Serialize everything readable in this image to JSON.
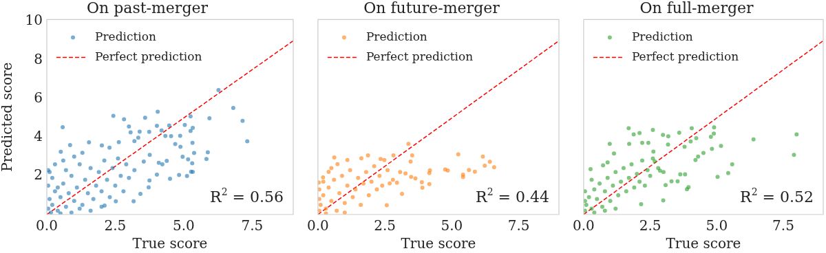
{
  "chart_data": [
    {
      "type": "scatter",
      "title": "On past-merger",
      "xlabel": "True score",
      "ylabel": "Predicted score",
      "xlim": [
        0,
        9
      ],
      "xticks": [
        {
          "value": 0,
          "label": "0.0"
        },
        {
          "value": 2.5,
          "label": "2.5"
        },
        {
          "value": 5,
          "label": "5.0"
        },
        {
          "value": 7.5,
          "label": "7.5"
        }
      ],
      "ylim": [
        0,
        10.1
      ],
      "yticks": [
        2,
        4,
        6,
        8,
        10
      ],
      "legend": "top left",
      "annotations": [
        "R$^{2}$ = 0.56"
      ],
      "series": [
        {
          "name": "Prediction",
          "color": "#1f77b4",
          "marker": "circle",
          "x": [
            6.27,
            6.81,
            7.15,
            7.32,
            5.94,
            5.88,
            5.83,
            4.05,
            3.59,
            2.43,
            2.82,
            0.58,
            3.0,
            3.06,
            3.39,
            3.74,
            4.02,
            4.47,
            5.04,
            5.25,
            5.33,
            5.25,
            4.19,
            4.33,
            4.54,
            4.87,
            5.32,
            4.69,
            4.88,
            5.38,
            4.96,
            5.16,
            5.31,
            5.27,
            5.33,
            4.83,
            5.12,
            4.5,
            4.02,
            3.75,
            3.72,
            3.42,
            3.17,
            2.52,
            2.11,
            0.85,
            0.51,
            1.54,
            2.01,
            2.63,
            2.29,
            3.34,
            3.2,
            4.38,
            4.22,
            4.09,
            3.76,
            3.54,
            0.05,
            0.1,
            0.05,
            0.05,
            0.1,
            0.2,
            0.3,
            0.4,
            0.5,
            0.6,
            0.7,
            0.8,
            0.9,
            1.0,
            1.1,
            1.2,
            1.3,
            1.4,
            1.5,
            1.6,
            1.7,
            1.8,
            1.9,
            2.0,
            2.1,
            2.2,
            2.3,
            2.4,
            2.5,
            2.6,
            2.7,
            2.8,
            2.9,
            3.0,
            3.2,
            0.3,
            0.6,
            1.0,
            1.3,
            0.15,
            0.5,
            0.9,
            1.2,
            1.6,
            2.0,
            0.2,
            0.4,
            0.7
          ],
          "values": [
            6.45,
            5.52,
            4.85,
            3.79,
            4.99,
            3.22,
            2.88,
            5.32,
            5.01,
            5.11,
            4.93,
            4.52,
            4.56,
            4.26,
            4.29,
            4.28,
            4.59,
            4.61,
            4.64,
            5.08,
            4.49,
            4.33,
            4.35,
            4.07,
            4.06,
            4.08,
            3.71,
            3.65,
            3.51,
            3.19,
            2.99,
            2.86,
            2.65,
            2.22,
            2.21,
            2.05,
            1.99,
            1.85,
            2.07,
            1.76,
            1.41,
            1.07,
            0.69,
            0.69,
            0.46,
            3.6,
            3.25,
            3.74,
            3.58,
            3.75,
            3.46,
            3.98,
            3.8,
            2.78,
            2.6,
            2.68,
            3.09,
            2.74,
            0.3,
            0.8,
            1.5,
            2.3,
            2.2,
            0.5,
            1.2,
            0.2,
            0.9,
            1.6,
            0.4,
            1.1,
            2.0,
            0.7,
            1.4,
            2.6,
            0.5,
            1.8,
            1.1,
            2.4,
            0.8,
            1.5,
            2.2,
            1.2,
            2.8,
            1.8,
            0.9,
            2.4,
            1.5,
            2.9,
            2.0,
            1.2,
            2.6,
            1.9,
            2.3,
            2.6,
            2.8,
            3.0,
            3.2,
            0.1,
            0.05,
            0.1,
            0.3,
            0.2,
            0.4,
            1.9,
            1.4,
            2.3
          ]
        },
        {
          "name": "Perfect prediction",
          "type": "line",
          "color": "#ff0000",
          "marker": "none",
          "line_style": "dashed",
          "x": [
            0,
            9
          ],
          "values": [
            0,
            9
          ]
        }
      ]
    },
    {
      "type": "scatter",
      "title": "On future-merger",
      "xlabel": "True score",
      "xlim": [
        0,
        9
      ],
      "xticks": [
        {
          "value": 0,
          "label": "0.0"
        },
        {
          "value": 2.5,
          "label": "2.5"
        },
        {
          "value": 5,
          "label": "5.0"
        },
        {
          "value": 7.5,
          "label": "7.5"
        }
      ],
      "ylim": [
        0,
        10.1
      ],
      "yticks": [
        2,
        4,
        6,
        8,
        10
      ],
      "tick_labels": "x",
      "legend": "top left",
      "annotations": [
        "R$^{2}$ = 0.44"
      ],
      "series": [
        {
          "name": "Prediction",
          "color": "#ff7f0e",
          "marker": "circle",
          "x": [
            3.38,
            5.24,
            6.16,
            6.42,
            6.23,
            6.58,
            5.64,
            5.86,
            5.42,
            5.42,
            4.75,
            4.85,
            4.18,
            4.16,
            3.52,
            3.46,
            2.82,
            1.87,
            1.62,
            0.61,
            1.1,
            0.73,
            2.34,
            2.48,
            3.07,
            3.27,
            3.64,
            3.48,
            3.88,
            4.16,
            3.9,
            2.68,
            2.95,
            3.14,
            2.57,
            0.4,
            0.19,
            0.03,
            0.05,
            0.05,
            0.05,
            0.1,
            0.2,
            0.3,
            0.4,
            0.5,
            0.6,
            0.7,
            0.8,
            0.9,
            1.0,
            1.1,
            1.2,
            1.3,
            1.4,
            1.5,
            1.6,
            1.7,
            1.8,
            1.9,
            2.0,
            2.1,
            2.2,
            2.3,
            2.4,
            2.6,
            2.8,
            0.5,
            0.3,
            1.0,
            0.2
          ],
          "values": [
            3.66,
            3.12,
            3.0,
            2.73,
            2.53,
            2.45,
            2.31,
            2.22,
            2.07,
            1.94,
            2.33,
            2.28,
            2.29,
            2.15,
            3.06,
            2.74,
            3.06,
            3.06,
            2.91,
            2.96,
            2.82,
            2.61,
            2.88,
            2.82,
            2.2,
            2.13,
            1.87,
            1.95,
            1.67,
            1.58,
            1.39,
            1.61,
            1.65,
            1.07,
            0.48,
            2.21,
            1.92,
            1.66,
            0.2,
            0.8,
            1.3,
            0.5,
            1.0,
            0.3,
            1.4,
            0.7,
            1.8,
            0.2,
            1.1,
            2.0,
            0.6,
            1.5,
            2.3,
            0.9,
            1.3,
            1.9,
            0.5,
            1.6,
            2.2,
            1.0,
            1.7,
            2.5,
            1.3,
            2.0,
            1.5,
            2.3,
            1.8,
            2.4,
            0.05,
            0.1,
            1.7
          ]
        },
        {
          "name": "Perfect prediction",
          "type": "line",
          "color": "#ff0000",
          "marker": "none",
          "line_style": "dashed",
          "x": [
            0,
            9
          ],
          "values": [
            0,
            9
          ]
        }
      ]
    },
    {
      "type": "scatter",
      "title": "On full-merger",
      "xlabel": "True score",
      "xlim": [
        0,
        9
      ],
      "xticks": [
        {
          "value": 0,
          "label": "0.0"
        },
        {
          "value": 2.5,
          "label": "2.5"
        },
        {
          "value": 5,
          "label": "5.0"
        },
        {
          "value": 7.5,
          "label": "7.5"
        }
      ],
      "ylim": [
        0,
        10.1
      ],
      "yticks": [
        2,
        4,
        6,
        8,
        10
      ],
      "tick_labels": "x",
      "legend": "top left",
      "annotations": [
        "R$^{2}$ = 0.52"
      ],
      "series": [
        {
          "name": "Prediction",
          "color": "#2ca02c",
          "marker": "circle",
          "x": [
            8.0,
            7.9,
            6.38,
            5.58,
            5.43,
            5.03,
            5.16,
            4.9,
            4.89,
            4.78,
            4.82,
            4.5,
            4.2,
            4.3,
            4.06,
            3.59,
            4.02,
            4.23,
            3.79,
            1.69,
            2.1,
            2.6,
            2.98,
            3.18,
            1.88,
            0.98,
            1.71,
            2.2,
            2.43,
            3.17,
            3.63,
            3.81,
            3.94,
            3.88,
            3.53,
            3.3,
            3.08,
            2.99,
            2.16,
            0.26,
            0.73,
            1.14,
            2.62,
            2.67,
            2.87,
            0.05,
            0.05,
            0.05,
            0.1,
            0.2,
            0.3,
            0.4,
            0.5,
            0.6,
            0.7,
            0.8,
            0.9,
            1.0,
            1.1,
            1.2,
            1.3,
            1.4,
            1.5,
            1.6,
            1.7,
            1.8,
            1.9,
            2.0,
            2.1,
            2.2,
            2.3,
            2.4,
            2.5,
            2.6,
            2.8,
            3.0,
            0.4,
            0.8,
            1.2,
            0.3,
            0.9
          ],
          "values": [
            4.15,
            3.09,
            3.89,
            2.6,
            2.15,
            1.95,
            3.55,
            4.51,
            4.19,
            4.02,
            3.4,
            3.19,
            2.82,
            3.0,
            4.47,
            4.24,
            3.78,
            3.95,
            3.51,
            4.47,
            4.22,
            4.38,
            4.12,
            4.05,
            4.15,
            3.66,
            3.66,
            3.71,
            3.71,
            3.62,
            2.08,
            2.08,
            1.42,
            1.31,
            1.72,
            1.72,
            1.52,
            0.73,
            0.53,
            2.35,
            2.55,
            3.16,
            3.26,
            2.75,
            2.27,
            0.2,
            0.7,
            1.2,
            0.5,
            0.9,
            0.3,
            1.3,
            0.8,
            1.6,
            0.4,
            1.2,
            1.9,
            0.7,
            1.5,
            2.2,
            1.0,
            1.7,
            2.4,
            1.2,
            1.9,
            2.6,
            1.4,
            2.1,
            1.7,
            2.8,
            1.5,
            2.3,
            2.0,
            2.9,
            2.4,
            2.2,
            0.1,
            0.2,
            0.3,
            1.8,
            2.7
          ]
        },
        {
          "name": "Perfect prediction",
          "type": "line",
          "color": "#ff0000",
          "marker": "none",
          "line_style": "dashed",
          "x": [
            0,
            9
          ],
          "values": [
            0,
            9
          ]
        }
      ]
    }
  ]
}
